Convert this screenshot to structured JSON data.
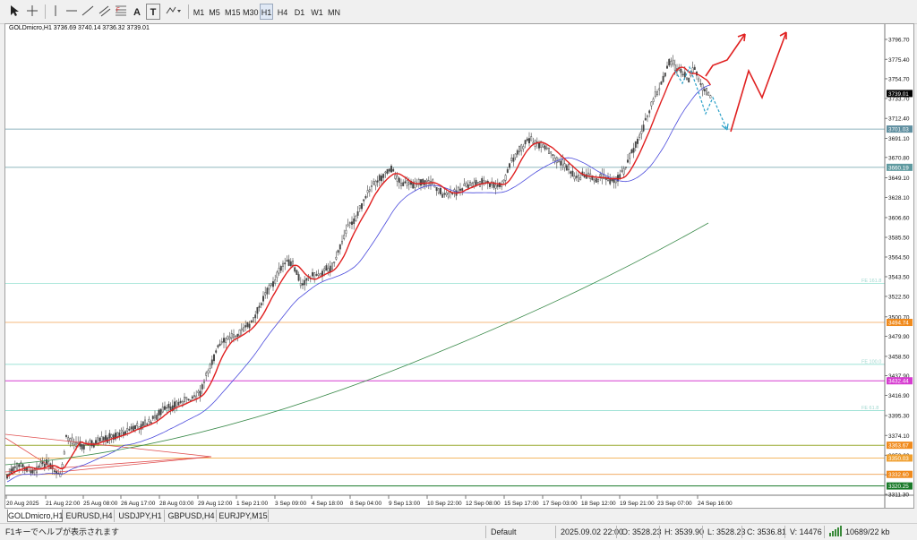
{
  "toolbar": {
    "tool_icons": [
      "cursor-icon",
      "crosshair-icon",
      "vertical-line-icon",
      "horizontal-line-icon",
      "trend-line-icon",
      "channel-icon",
      "fibonacci-icon",
      "text-icon",
      "text-label-icon",
      "shapes-dropdown-icon"
    ],
    "text_tool": "A",
    "label_tool": "T",
    "timeframes": [
      "M1",
      "M5",
      "M15",
      "M30",
      "H1",
      "H4",
      "D1",
      "W1",
      "MN"
    ],
    "active_timeframe": "H1"
  },
  "chart": {
    "info": "GOLDmicro,H1  3736.69 3740.14 3736.32 3739.01",
    "price_labels": [
      "3796.70",
      "3775.40",
      "3754.70",
      "3733.70",
      "3712.40",
      "3691.10",
      "3670.80",
      "3649.10",
      "3628.10",
      "3606.60",
      "3585.50",
      "3564.50",
      "3543.50",
      "3522.50",
      "3500.70",
      "3479.90",
      "3458.50",
      "3437.90",
      "3416.90",
      "3395.30",
      "3374.10",
      "3353.00",
      "3332.10",
      "3311.30"
    ],
    "time_labels": [
      "20 Aug 2025",
      "21 Aug 22:00",
      "25 Aug 08:00",
      "26 Aug 17:00",
      "28 Aug 03:00",
      "29 Aug 12:00",
      "1 Sep 21:00",
      "3 Sep 09:00",
      "4 Sep 18:00",
      "8 Sep 04:00",
      "9 Sep 13:00",
      "10 Sep 22:00",
      "12 Sep 08:00",
      "15 Sep 17:00",
      "17 Sep 03:00",
      "18 Sep 12:00",
      "19 Sep 21:00",
      "23 Sep 07:00",
      "24 Sep 16:00"
    ],
    "current_price": "3739.01",
    "level_tags": [
      {
        "price": "3701.03",
        "color": "#5f8fa0"
      },
      {
        "price": "3660.19",
        "color": "#5f9aa0"
      },
      {
        "price": "3494.74",
        "color": "#f08a1c"
      },
      {
        "price": "3432.44",
        "color": "#d63bd0"
      },
      {
        "price": "3363.67",
        "color": "#f08a1c"
      },
      {
        "price": "3350.03",
        "color": "#f0a030"
      },
      {
        "price": "3332.60",
        "color": "#f08a1c"
      },
      {
        "price": "3320.25",
        "color": "#1a7a2a"
      }
    ],
    "fib_tags": [
      "FE 161.8",
      "FE 100.0",
      "FE 61.8"
    ]
  },
  "tabs": [
    "GOLDmicro,H1",
    "EURUSD,H4",
    "USDJPY,H1",
    "GBPUSD,H4",
    "EURJPY,M15"
  ],
  "status": {
    "help": "F1キーでヘルプが表示されます",
    "profile": "Default",
    "datetime": "2025.09.02 22:00",
    "open": "O: 3528.23",
    "high": "H: 3539.90",
    "low": "L: 3528.23",
    "close": "C: 3536.81",
    "volume": "V: 14476",
    "traffic": "10689/22 kb"
  }
}
